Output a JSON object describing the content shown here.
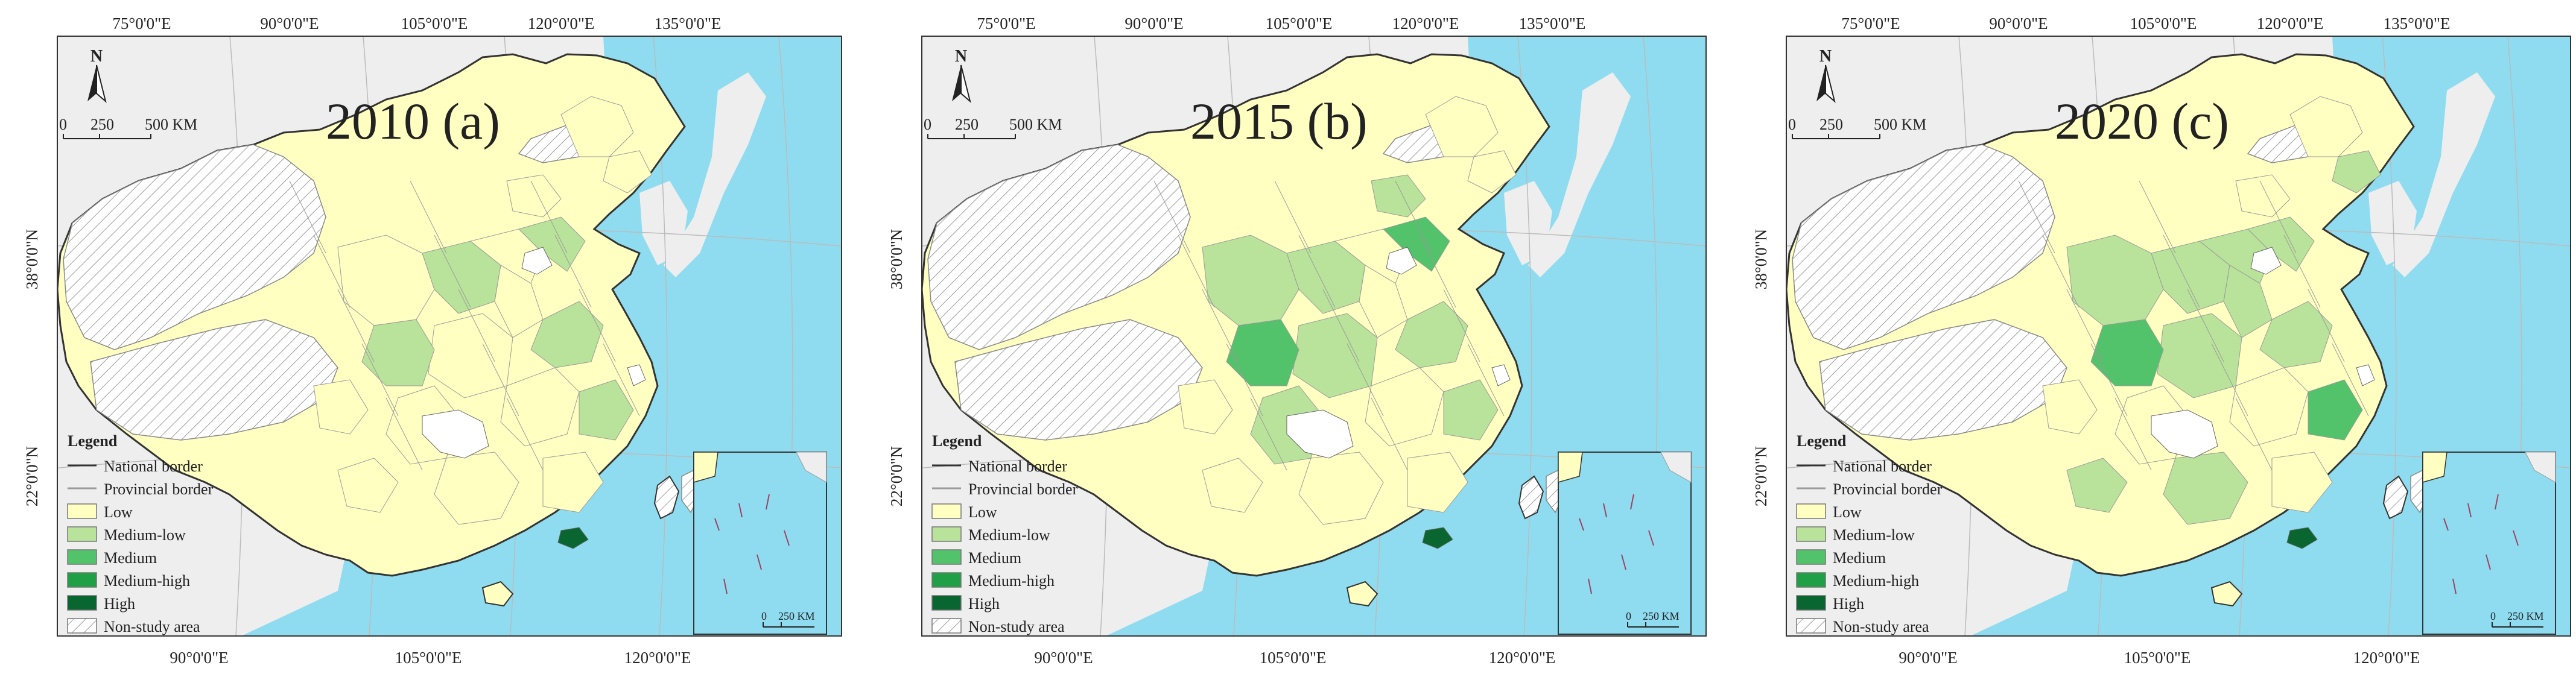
{
  "panels": [
    {
      "title": "2010 (a)"
    },
    {
      "title": "2015 (b)"
    },
    {
      "title": "2020 (c)"
    }
  ],
  "top_axis": [
    "75°0'0\"E",
    "90°0'0\"E",
    "105°0'0\"E",
    "120°0'0\"E",
    "135°0'0\"E"
  ],
  "bottom_axis": [
    "90°0'0\"E",
    "105°0'0\"E",
    "120°0'0\"E"
  ],
  "left_axis": [
    "38°0'0\"N",
    "22°0'0\"N"
  ],
  "right_axis": [
    "38°0'0\"N",
    "22°0'0\"N"
  ],
  "north_arrow": "N",
  "scale_bar": {
    "labels": [
      "0",
      "250",
      "500 KM"
    ]
  },
  "inset_scale": {
    "labels": [
      "0",
      "250 KM"
    ]
  },
  "legend": {
    "title": "Legend",
    "items": [
      {
        "label": "National border",
        "kind": "line",
        "color": "#333333"
      },
      {
        "label": "Provincial border",
        "kind": "line",
        "color": "#9a9a9a"
      },
      {
        "label": "Low",
        "kind": "fill",
        "color": "#ffffc2"
      },
      {
        "label": "Medium-low",
        "kind": "fill",
        "color": "#b9e29a"
      },
      {
        "label": "Medium",
        "kind": "fill",
        "color": "#52c26b"
      },
      {
        "label": "Medium-high",
        "kind": "fill",
        "color": "#20a046"
      },
      {
        "label": "High",
        "kind": "fill",
        "color": "#0a6630"
      },
      {
        "label": "Non-study area",
        "kind": "hatch",
        "color": "#ffffff"
      }
    ]
  },
  "colors": {
    "sea": "#8fdcf0",
    "land_outside": "#eeeeee",
    "border_frame": "#333333"
  }
}
